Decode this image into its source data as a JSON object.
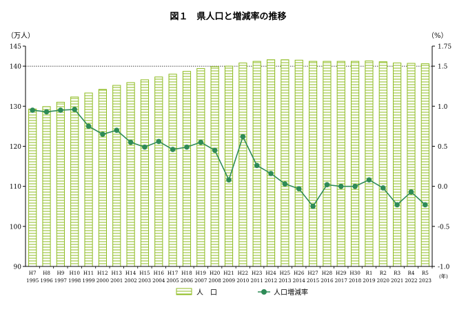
{
  "chart_data": {
    "type": "bar+line",
    "title": "図１　県人口と増減率の推移",
    "left_axis_unit": "（万人）",
    "right_axis_unit": "（%）",
    "x_axis_unit": "(年)",
    "left_ylim": [
      90,
      145
    ],
    "left_ticks": [
      "145",
      "140",
      "130",
      "120",
      "110",
      "100",
      "90"
    ],
    "right_ylim": [
      -1.0,
      1.75
    ],
    "right_ticks": [
      "1.75",
      "1.5",
      "1.0",
      "0.5",
      "0.0",
      "-0.5",
      "-1.0"
    ],
    "categories_era": [
      "H7",
      "H8",
      "H9",
      "H10",
      "H11",
      "H12",
      "H13",
      "H14",
      "H15",
      "H16",
      "H17",
      "H18",
      "H19",
      "H20",
      "H21",
      "H22",
      "H23",
      "H24",
      "H25",
      "H26",
      "H27",
      "H28",
      "H29",
      "H30",
      "R1",
      "R2",
      "R3",
      "R4",
      "R5"
    ],
    "categories_year": [
      "1995",
      "1996",
      "1997",
      "1998",
      "1999",
      "2000",
      "2001",
      "2002",
      "2003",
      "2004",
      "2005",
      "2006",
      "2007",
      "2008",
      "2009",
      "2010",
      "2011",
      "2012",
      "2013",
      "2014",
      "2015",
      "2016",
      "2017",
      "2018",
      "2019",
      "2020",
      "2021",
      "2022",
      "2023"
    ],
    "series": [
      {
        "name": "人　口",
        "kind": "bar",
        "axis": "left",
        "values": [
          129.3,
          129.9,
          131.0,
          132.3,
          133.3,
          134.2,
          135.2,
          135.9,
          136.6,
          137.3,
          138.0,
          138.7,
          139.4,
          139.9,
          140.0,
          140.8,
          141.2,
          141.6,
          141.6,
          141.5,
          141.2,
          141.2,
          141.2,
          141.2,
          141.3,
          141.1,
          140.8,
          140.7,
          140.6
        ]
      },
      {
        "name": "人口増減率",
        "kind": "line",
        "axis": "right",
        "values": [
          0.95,
          0.93,
          0.95,
          0.96,
          0.75,
          0.65,
          0.7,
          0.55,
          0.49,
          0.56,
          0.46,
          0.49,
          0.55,
          0.45,
          0.08,
          0.62,
          0.26,
          0.16,
          0.03,
          -0.03,
          -0.25,
          0.02,
          0.0,
          0.0,
          0.08,
          -0.02,
          -0.23,
          -0.07,
          -0.23
        ]
      }
    ],
    "grid": "dotted line at 140 only",
    "legend_position": "bottom-center",
    "colors": {
      "bar_stroke": "#8dbb1f",
      "bar_fill": "#ffffff",
      "bar_stripe": "#8dbb1f",
      "line": "#2e8b57",
      "marker": "#2e8b57"
    }
  }
}
